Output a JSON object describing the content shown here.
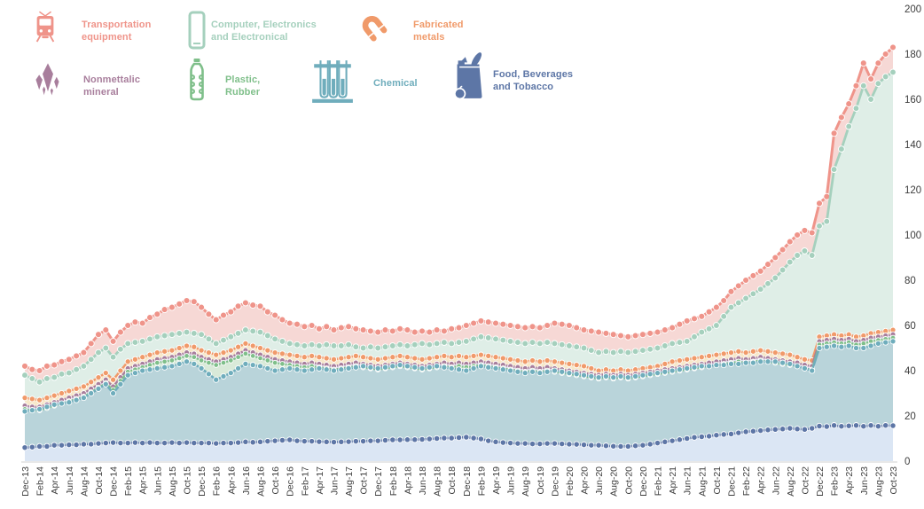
{
  "legend": {
    "items": [
      {
        "id": "transportation-equipment",
        "label_lines": [
          "Transportation",
          "equipment"
        ],
        "color": "#ef948a",
        "icon": "tram-icon"
      },
      {
        "id": "computer-electronics",
        "label_lines": [
          "Computer, Electronics",
          "and Electronical"
        ],
        "color": "#a5d0bd",
        "icon": "smartphone-icon"
      },
      {
        "id": "fabricated-metals",
        "label_lines": [
          "Fabricated",
          "metals"
        ],
        "color": "#f09a6a",
        "icon": "magnet-icon"
      },
      {
        "id": "nonmetallic-mineral",
        "label_lines": [
          "Nonmettalic",
          "mineral"
        ],
        "color": "#a87e9c",
        "icon": "crystal-icon"
      },
      {
        "id": "plastic-rubber",
        "label_lines": [
          "Plastic,",
          "Rubber"
        ],
        "color": "#7fbf8a",
        "icon": "bottle-icon"
      },
      {
        "id": "chemical",
        "label_lines": [
          "Chemical"
        ],
        "color": "#6fadbc",
        "icon": "test-tubes-icon"
      },
      {
        "id": "food-beverages-tobacco",
        "label_lines": [
          "Food, Beverages",
          "and Tobacco"
        ],
        "color": "#5d76a6",
        "icon": "grocery-bag-icon"
      }
    ]
  },
  "chart_data": {
    "type": "area",
    "title": "",
    "x_start": "Dec-13",
    "x_end": "Oct-23",
    "x_points": 119,
    "x_tick_labels": [
      "Dec-13",
      "Feb-14",
      "Apr-14",
      "Jun-14",
      "Aug-14",
      "Oct-14",
      "Dec-14",
      "Feb-15",
      "Apr-15",
      "Jun-15",
      "Aug-15",
      "Oct-15",
      "Dec-15",
      "Feb-16",
      "Apr-16",
      "Jun-16",
      "Aug-16",
      "Oct-16",
      "Dec-16",
      "Feb-17",
      "Apr-17",
      "Jun-17",
      "Aug-17",
      "Oct-17",
      "Dec-17",
      "Feb-18",
      "Apr-18",
      "Jun-18",
      "Aug-18",
      "Oct-18",
      "Dec-18",
      "Feb-19",
      "Apr-19",
      "Jun-19",
      "Aug-19",
      "Oct-19",
      "Dec-19",
      "Feb-20",
      "Apr-20",
      "Jun-20",
      "Aug-20",
      "Oct-20",
      "Dec-20",
      "Feb-21",
      "Apr-21",
      "Jun-21",
      "Aug-21",
      "Oct-21",
      "Dec-21",
      "Feb-22",
      "Apr-22",
      "Jun-22",
      "Aug-22",
      "Oct-22",
      "Dec-22",
      "Feb-23",
      "Apr-23",
      "Jun-23",
      "Aug-23",
      "Oct-23"
    ],
    "y_axis": {
      "min": 0,
      "max": 200,
      "step": 20,
      "side": "right",
      "tick_labels": [
        "0",
        "20",
        "40",
        "60",
        "80",
        "100",
        "120",
        "140",
        "160",
        "180",
        "200"
      ]
    },
    "grid": false,
    "series": [
      {
        "name": "Transportation equipment",
        "color": "#ef948a",
        "fill": "#f6d8d5",
        "values": [
          42,
          40.5,
          40,
          42,
          42.5,
          44,
          45,
          46.5,
          48,
          52,
          56,
          58,
          53,
          57,
          60,
          61.5,
          61,
          63.5,
          65,
          67,
          68,
          69.5,
          71,
          70.5,
          68,
          65,
          62.5,
          64.5,
          66,
          68.5,
          70,
          69,
          68.5,
          66,
          64.5,
          62.5,
          61,
          60.5,
          59.5,
          60,
          58.5,
          59.5,
          58,
          59,
          59.5,
          58.5,
          58,
          57.5,
          57,
          58,
          57.5,
          58.5,
          58,
          57,
          57.5,
          57,
          58,
          57.5,
          58.5,
          59,
          60,
          61,
          62,
          61.5,
          61,
          60.5,
          60,
          59.5,
          59,
          59.5,
          59,
          60,
          61,
          60.5,
          60,
          59,
          58,
          57.5,
          57,
          56.5,
          56,
          55.5,
          55,
          55.5,
          56,
          56.5,
          57,
          58,
          59,
          60.5,
          62,
          63,
          64,
          66,
          68,
          71,
          75,
          77.5,
          80,
          82,
          84,
          87,
          90,
          93.5,
          97,
          100,
          102,
          101,
          114,
          117,
          145,
          152,
          158,
          166,
          176,
          169,
          176,
          180,
          183
        ]
      },
      {
        "name": "Computer, Electronics and Electronical",
        "color": "#a5d0bd",
        "fill": "#dfeee7",
        "values": [
          38,
          36.5,
          35,
          36.5,
          37,
          38.5,
          39,
          40.5,
          42,
          45,
          48,
          50,
          46,
          49.5,
          52,
          52.5,
          53,
          54,
          55,
          55.5,
          56,
          56.5,
          57,
          56.5,
          56,
          54,
          52,
          53.5,
          55,
          56.5,
          58,
          57.5,
          57,
          55.5,
          54,
          53,
          52,
          51.5,
          51,
          51.5,
          51,
          51.5,
          51,
          51,
          51.5,
          50.5,
          50,
          50.5,
          50,
          50.5,
          51,
          51.5,
          51,
          51.5,
          52,
          51.5,
          52,
          52.5,
          52,
          52.5,
          53,
          54,
          55,
          54.5,
          54,
          53.5,
          53,
          52.5,
          52,
          52.5,
          52,
          52.5,
          52,
          51.5,
          51,
          50.5,
          50,
          49,
          48,
          48.5,
          48,
          48.5,
          48,
          48.5,
          49,
          49.5,
          50,
          51,
          52,
          52.5,
          53,
          55,
          57,
          58.5,
          60,
          64,
          68,
          70,
          72,
          74,
          76,
          78.5,
          81,
          84.5,
          88,
          91,
          93,
          91,
          104,
          106,
          129,
          138,
          148,
          156,
          166,
          160,
          167,
          170,
          172
        ]
      },
      {
        "name": "Fabricated metals",
        "color": "#f09a6a",
        "fill": "#f7e8ca",
        "values": [
          28,
          27.5,
          27,
          28,
          29,
          30,
          31,
          32,
          33,
          35,
          37,
          39,
          36,
          40,
          44,
          45,
          46,
          47,
          48,
          48.5,
          49,
          50,
          51,
          50.5,
          49,
          48,
          47,
          48,
          49,
          50.5,
          52,
          51,
          50,
          49,
          48,
          47.5,
          47,
          46.5,
          46,
          46.5,
          46,
          45.5,
          45,
          45.5,
          46,
          46.5,
          46,
          45.5,
          45,
          45.5,
          46,
          46.5,
          46,
          45.5,
          45,
          45.5,
          46,
          46.5,
          46,
          46.5,
          46,
          46.5,
          47,
          46.5,
          46,
          45.5,
          45,
          44.5,
          44,
          44.5,
          44,
          44.5,
          44,
          43.5,
          43,
          42.5,
          42,
          41,
          40,
          40.5,
          40,
          40.5,
          40,
          40.5,
          41,
          41.5,
          42,
          43,
          44,
          44.5,
          45,
          45.5,
          46,
          46.5,
          47,
          47.5,
          48,
          48.5,
          48,
          48.5,
          49,
          48.5,
          48,
          47.5,
          47,
          46,
          45,
          44.5,
          55,
          55.5,
          56,
          55.5,
          56,
          55,
          55.5,
          56.5,
          57,
          57.5,
          58
        ]
      },
      {
        "name": "Nonmettalic mineral",
        "color": "#a87e9c",
        "fill": "#dcd8ef",
        "values": [
          24.5,
          24,
          24,
          25,
          26,
          27,
          28,
          29,
          30,
          32,
          34,
          36,
          33,
          37,
          41,
          42,
          43,
          44,
          45,
          45.5,
          46,
          47,
          48,
          47.5,
          46,
          45,
          44,
          45,
          46,
          47.5,
          49,
          48,
          47,
          46,
          45,
          44.5,
          44,
          43.5,
          43,
          43.5,
          43,
          42.5,
          42,
          42.5,
          43,
          43.5,
          43,
          42.5,
          42,
          42.5,
          43,
          43.5,
          43,
          42.5,
          42,
          42.5,
          43,
          43.5,
          43,
          43.5,
          43,
          43.5,
          44,
          43.5,
          43,
          42.5,
          42,
          41.5,
          41,
          41.5,
          41,
          41.5,
          41,
          40.5,
          40,
          39.5,
          39,
          38.5,
          38,
          38.5,
          38,
          38.5,
          38,
          38.5,
          39,
          39.5,
          40,
          40.5,
          41,
          41.5,
          42,
          42.5,
          43,
          43.5,
          44,
          44.5,
          45,
          45.5,
          45,
          45.5,
          46,
          45.5,
          45,
          44.5,
          44,
          43.5,
          42.5,
          42,
          53,
          53.5,
          54,
          53.5,
          54,
          53,
          53.5,
          54.5,
          55,
          55.5,
          56
        ]
      },
      {
        "name": "Plastic, Rubber",
        "color": "#7fbf8a",
        "fill": "#d9ead9",
        "values": [
          23,
          22.5,
          22.5,
          23.5,
          24.5,
          25.5,
          26.5,
          27.5,
          28.5,
          30.5,
          32.5,
          34.5,
          31.5,
          35.5,
          39.5,
          40.5,
          41.5,
          42.5,
          43.5,
          44,
          44.5,
          45.5,
          46.5,
          46,
          44.5,
          43.5,
          42.5,
          43.5,
          44.5,
          46,
          47.5,
          46.5,
          45.5,
          44.5,
          43.5,
          43,
          42.5,
          42,
          41.5,
          42,
          41.5,
          41,
          40.5,
          41,
          41.5,
          42,
          41.5,
          41,
          40.5,
          41,
          41.5,
          42,
          41.5,
          41,
          40.5,
          41,
          41.5,
          42,
          41.5,
          42,
          41.5,
          42,
          42.5,
          42,
          41.5,
          41,
          40.5,
          40,
          39.5,
          40,
          39.5,
          40,
          39.5,
          39,
          38.5,
          38,
          37.5,
          37,
          36.5,
          37,
          36.5,
          37,
          36.5,
          37,
          37.5,
          38,
          38.5,
          39,
          39.5,
          40,
          40.5,
          41,
          41.5,
          42,
          42.5,
          43,
          43.5,
          44,
          43.5,
          44,
          44.5,
          44,
          43.5,
          43,
          42.5,
          42,
          41,
          40.5,
          51.5,
          52,
          52.5,
          52,
          52.5,
          51.5,
          52,
          53,
          53.5,
          54,
          54.5
        ]
      },
      {
        "name": "Chemical",
        "color": "#6fadbc",
        "fill": "#b9d4da",
        "values": [
          22,
          22.5,
          23,
          24,
          25,
          25.5,
          26,
          27,
          28,
          30,
          32,
          34,
          30,
          34,
          38,
          39,
          40,
          40.5,
          41,
          41.5,
          42,
          43,
          44,
          43,
          41,
          38.5,
          36,
          37.5,
          39,
          41,
          43,
          42.5,
          42,
          41,
          40,
          40.5,
          41,
          40.5,
          40,
          40.5,
          41,
          40.5,
          40,
          40.5,
          41,
          41.5,
          42,
          41.5,
          41,
          41.5,
          42,
          42.5,
          42,
          41.5,
          41,
          41.5,
          42,
          41.5,
          41,
          40.5,
          40,
          41,
          42,
          41.5,
          41,
          40.5,
          40,
          39.5,
          39,
          39.5,
          39,
          39.5,
          40,
          39.5,
          39,
          38.5,
          38,
          37.5,
          37,
          37.5,
          37,
          37.5,
          37,
          37.5,
          38,
          38.5,
          39,
          39.5,
          40,
          40.5,
          41,
          41.5,
          42,
          42,
          42.5,
          42.5,
          43,
          43,
          43.5,
          43.5,
          44,
          44,
          44,
          43.5,
          43,
          42,
          41,
          40,
          50,
          50.5,
          51,
          50.5,
          51,
          50,
          50,
          51,
          52,
          52.5,
          53
        ]
      },
      {
        "name": "Food, Beverages and Tobacco",
        "color": "#5d76a6",
        "fill": "#dbe6f4",
        "values": [
          6,
          6.2,
          6.5,
          6.5,
          7,
          7,
          7.2,
          7.2,
          7.5,
          7.5,
          7.8,
          8,
          8.2,
          8,
          8,
          8.2,
          8,
          8.2,
          8,
          8,
          8.2,
          8,
          8.2,
          8,
          8,
          8,
          7.8,
          8,
          8,
          8.2,
          8.5,
          8.3,
          8.5,
          8.8,
          9,
          9.2,
          9.4,
          9,
          8.8,
          8.8,
          8.6,
          8.5,
          8.4,
          8.5,
          8.6,
          8.8,
          8.8,
          9,
          9,
          9.2,
          9.4,
          9.4,
          9.5,
          9.5,
          9.6,
          9.8,
          10,
          10.2,
          10.2,
          10.4,
          10.6,
          10.2,
          9.8,
          9,
          8.5,
          8.2,
          8,
          7.8,
          7.8,
          7.6,
          7.6,
          7.8,
          7.8,
          7.6,
          7.5,
          7.4,
          7.2,
          7,
          7,
          6.8,
          6.6,
          6.5,
          6.5,
          6.8,
          7,
          7.5,
          8,
          8.5,
          9,
          9.5,
          10,
          10.5,
          10.8,
          11,
          11.5,
          11.8,
          12,
          12.5,
          13,
          13.2,
          13.5,
          13.8,
          14,
          14.2,
          14.5,
          14.2,
          14,
          14.5,
          15.5,
          15.3,
          15.8,
          15.4,
          15.6,
          15.8,
          15.4,
          15.8,
          15.4,
          15.8,
          15.7
        ]
      }
    ]
  }
}
